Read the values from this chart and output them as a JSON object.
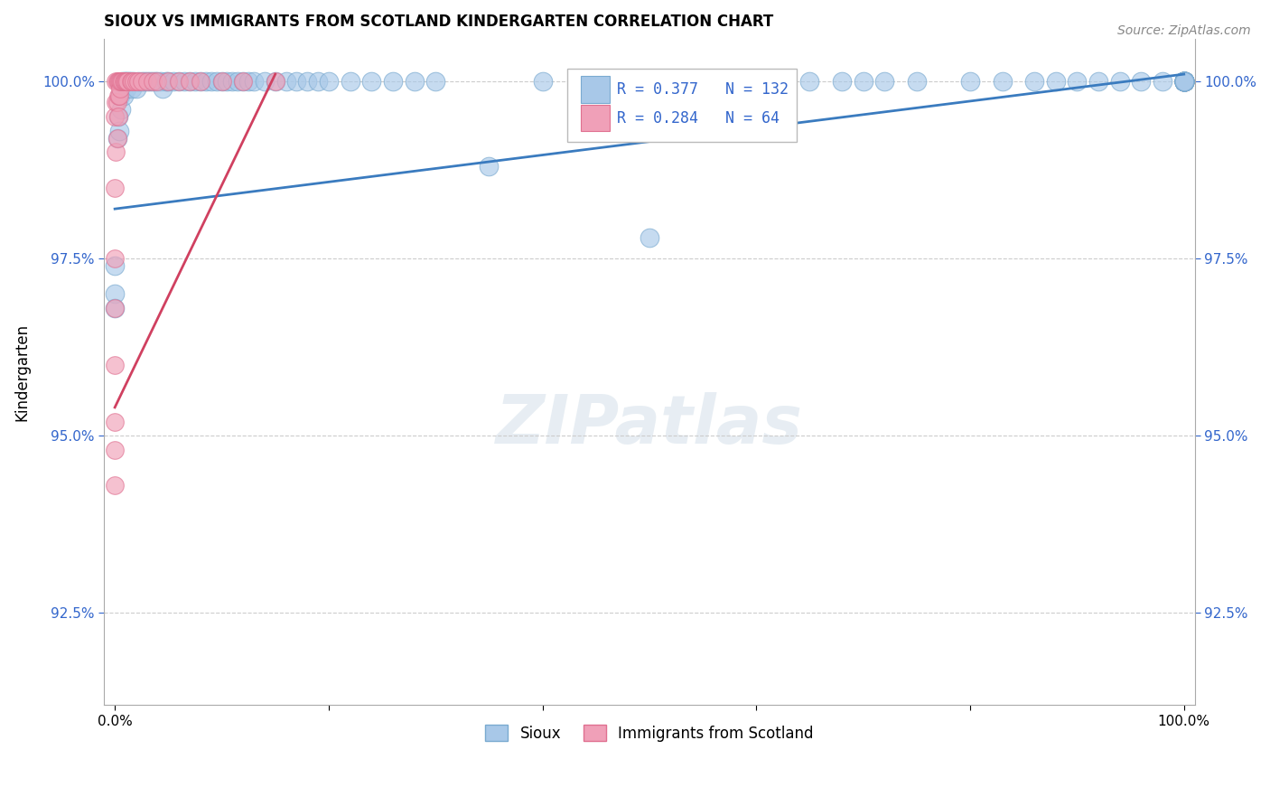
{
  "title": "SIOUX VS IMMIGRANTS FROM SCOTLAND KINDERGARTEN CORRELATION CHART",
  "source_text": "Source: ZipAtlas.com",
  "ylabel": "Kindergarten",
  "xlim": [
    -0.01,
    1.01
  ],
  "ylim": [
    0.912,
    1.006
  ],
  "ytick_labels": [
    "92.5%",
    "95.0%",
    "97.5%",
    "100.0%"
  ],
  "ytick_vals": [
    0.925,
    0.95,
    0.975,
    1.0
  ],
  "legend_blue_label": "Sioux",
  "legend_pink_label": "Immigrants from Scotland",
  "blue_R": 0.377,
  "blue_N": 132,
  "pink_R": 0.284,
  "pink_N": 64,
  "blue_color": "#a8c8e8",
  "pink_color": "#f0a0b8",
  "blue_edge_color": "#7aaad0",
  "pink_edge_color": "#e07090",
  "blue_line_color": "#3a7bbf",
  "pink_line_color": "#d04060",
  "watermark_text": "ZIPatlas",
  "blue_points_x": [
    0.0,
    0.0,
    0.0,
    0.002,
    0.003,
    0.004,
    0.005,
    0.006,
    0.007,
    0.008,
    0.009,
    0.01,
    0.011,
    0.012,
    0.013,
    0.015,
    0.016,
    0.018,
    0.02,
    0.022,
    0.025,
    0.028,
    0.03,
    0.033,
    0.035,
    0.038,
    0.04,
    0.043,
    0.045,
    0.048,
    0.05,
    0.055,
    0.06,
    0.065,
    0.07,
    0.075,
    0.08,
    0.085,
    0.09,
    0.095,
    0.1,
    0.105,
    0.11,
    0.115,
    0.12,
    0.125,
    0.13,
    0.14,
    0.15,
    0.16,
    0.17,
    0.18,
    0.19,
    0.2,
    0.22,
    0.24,
    0.26,
    0.28,
    0.3,
    0.35,
    0.4,
    0.5,
    0.52,
    0.6,
    0.62,
    0.65,
    0.68,
    0.7,
    0.72,
    0.75,
    0.8,
    0.83,
    0.86,
    0.88,
    0.9,
    0.92,
    0.94,
    0.96,
    0.98,
    1.0,
    1.0,
    1.0,
    1.0,
    1.0,
    1.0,
    1.0,
    1.0,
    1.0,
    1.0,
    1.0,
    1.0,
    1.0,
    1.0,
    1.0,
    1.0,
    1.0,
    1.0,
    1.0,
    1.0,
    1.0,
    1.0,
    1.0,
    1.0,
    1.0,
    1.0,
    1.0,
    1.0,
    1.0,
    1.0,
    1.0,
    1.0,
    1.0,
    1.0,
    1.0,
    1.0,
    1.0,
    1.0,
    1.0,
    1.0,
    1.0,
    1.0,
    1.0,
    1.0,
    1.0,
    1.0,
    1.0,
    1.0,
    1.0,
    1.0,
    1.0
  ],
  "blue_points_y": [
    0.97,
    0.974,
    0.968,
    0.992,
    0.995,
    0.993,
    0.998,
    0.996,
    1.0,
    0.998,
    1.0,
    1.0,
    0.999,
    1.0,
    1.0,
    1.0,
    0.999,
    1.0,
    0.999,
    1.0,
    1.0,
    1.0,
    1.0,
    1.0,
    1.0,
    1.0,
    1.0,
    1.0,
    0.999,
    1.0,
    1.0,
    1.0,
    1.0,
    1.0,
    1.0,
    1.0,
    1.0,
    1.0,
    1.0,
    1.0,
    1.0,
    1.0,
    1.0,
    1.0,
    1.0,
    1.0,
    1.0,
    1.0,
    1.0,
    1.0,
    1.0,
    1.0,
    1.0,
    1.0,
    1.0,
    1.0,
    1.0,
    1.0,
    1.0,
    0.988,
    1.0,
    0.978,
    1.0,
    1.0,
    1.0,
    1.0,
    1.0,
    1.0,
    1.0,
    1.0,
    1.0,
    1.0,
    1.0,
    1.0,
    1.0,
    1.0,
    1.0,
    1.0,
    1.0,
    1.0,
    1.0,
    1.0,
    1.0,
    1.0,
    1.0,
    1.0,
    1.0,
    1.0,
    1.0,
    1.0,
    1.0,
    1.0,
    1.0,
    1.0,
    1.0,
    1.0,
    1.0,
    1.0,
    1.0,
    1.0,
    1.0,
    1.0,
    1.0,
    1.0,
    1.0,
    1.0,
    1.0,
    1.0,
    1.0,
    1.0,
    1.0,
    1.0,
    1.0,
    1.0,
    1.0,
    1.0,
    1.0,
    1.0,
    1.0,
    1.0,
    1.0,
    1.0,
    1.0,
    1.0,
    1.0,
    1.0,
    1.0,
    1.0,
    1.0,
    1.0
  ],
  "pink_points_x": [
    0.0,
    0.0,
    0.0,
    0.0,
    0.0,
    0.0,
    0.0,
    0.0,
    0.001,
    0.001,
    0.001,
    0.002,
    0.002,
    0.002,
    0.003,
    0.003,
    0.003,
    0.004,
    0.004,
    0.005,
    0.005,
    0.006,
    0.007,
    0.008,
    0.009,
    0.01,
    0.011,
    0.012,
    0.015,
    0.016,
    0.018,
    0.02,
    0.022,
    0.025,
    0.03,
    0.035,
    0.04,
    0.05,
    0.06,
    0.07,
    0.08,
    0.1,
    0.12,
    0.15
  ],
  "pink_points_y": [
    0.943,
    0.948,
    0.952,
    0.96,
    0.968,
    0.975,
    0.985,
    0.995,
    0.99,
    0.997,
    1.0,
    0.992,
    0.997,
    1.0,
    0.995,
    0.998,
    1.0,
    0.998,
    1.0,
    0.999,
    1.0,
    1.0,
    1.0,
    1.0,
    1.0,
    1.0,
    1.0,
    1.0,
    1.0,
    1.0,
    1.0,
    1.0,
    1.0,
    1.0,
    1.0,
    1.0,
    1.0,
    1.0,
    1.0,
    1.0,
    1.0,
    1.0,
    1.0,
    1.0
  ],
  "blue_line_endpoints_x": [
    0.0,
    1.0
  ],
  "blue_line_endpoints_y": [
    0.982,
    1.001
  ],
  "pink_line_endpoints_x": [
    0.0,
    0.15
  ],
  "pink_line_endpoints_y": [
    0.954,
    1.001
  ]
}
